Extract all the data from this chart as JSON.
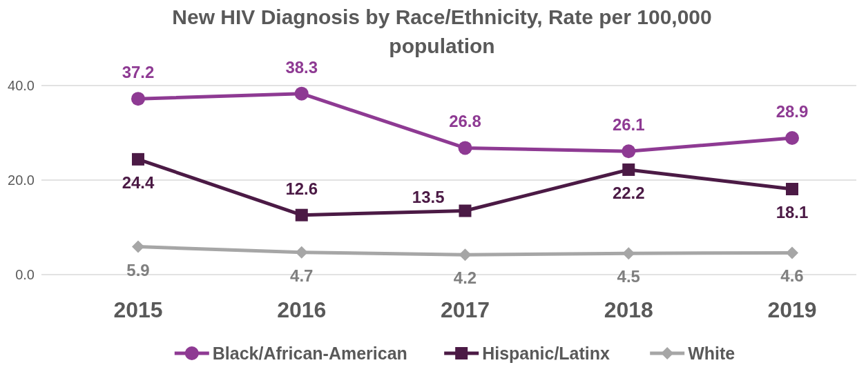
{
  "chart_data": {
    "type": "line",
    "title": "New HIV Diagnosis by Race/Ethnicity, Rate per 100,000 population",
    "categories": [
      "2015",
      "2016",
      "2017",
      "2018",
      "2019"
    ],
    "series": [
      {
        "name": "Black/African-American",
        "color": "#8e3a93",
        "marker": "circle",
        "values": [
          37.2,
          38.3,
          26.8,
          26.1,
          28.9
        ]
      },
      {
        "name": "Hispanic/Latinx",
        "color": "#4b1a45",
        "marker": "square",
        "values": [
          24.4,
          12.6,
          13.5,
          22.2,
          18.1
        ]
      },
      {
        "name": "White",
        "color": "#a6a6a6",
        "marker": "diamond",
        "values": [
          5.9,
          4.7,
          4.2,
          4.5,
          4.6
        ]
      }
    ],
    "ylim": [
      0,
      40
    ],
    "yticks": [
      {
        "value": 0,
        "label": "0.0"
      },
      {
        "value": 20,
        "label": "20.0"
      },
      {
        "value": 40,
        "label": "40.0"
      }
    ],
    "grid": "y",
    "legend": "bottom",
    "data_labels": true,
    "line_style": "solid"
  }
}
